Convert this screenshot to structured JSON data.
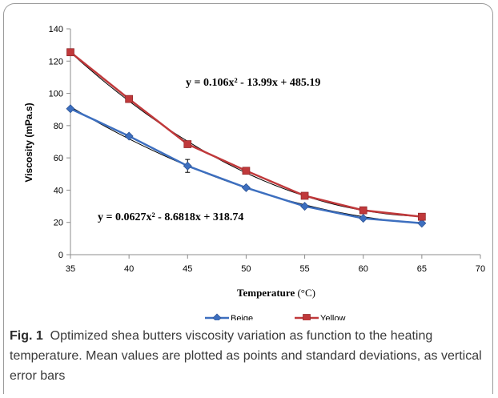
{
  "caption": {
    "label": "Fig. 1",
    "text": "Optimized shea butters viscosity variation as function to the heating temperature. Mean values are plotted as points and standard deviations, as vertical error bars"
  },
  "chart_data": {
    "type": "line",
    "ylabel": "Viscosity (mPa.s)",
    "xlabel_bold": "Temperature",
    "xlabel_unit": " (°C)",
    "xlim": [
      35,
      70
    ],
    "ylim": [
      0,
      140
    ],
    "x_ticks": [
      35,
      40,
      45,
      50,
      55,
      60,
      65,
      70
    ],
    "y_ticks": [
      0,
      20,
      40,
      60,
      80,
      100,
      120,
      140
    ],
    "grid": false,
    "legend_position": "bottom-center",
    "series": [
      {
        "name": "Beige",
        "color": "#3d6fbf",
        "marker": "diamond",
        "x": [
          35,
          40,
          45,
          50,
          55,
          60,
          65
        ],
        "y": [
          90.5,
          73.5,
          55,
          41.5,
          30,
          22.5,
          19.5
        ],
        "error": [
          0,
          0,
          4,
          0,
          0,
          0,
          0
        ],
        "trendline": {
          "a": 0.0627,
          "b": -8.6818,
          "c": 318.74,
          "equation": "y = 0.0627x² - 8.6818x + 318.74"
        }
      },
      {
        "name": "Yellow",
        "color": "#c0393b",
        "marker": "square",
        "x": [
          35,
          40,
          45,
          50,
          55,
          60,
          65
        ],
        "y": [
          125.5,
          96.5,
          68.5,
          52,
          36.5,
          27.5,
          23.5
        ],
        "error": [
          0,
          0,
          0,
          0,
          0,
          0,
          0
        ],
        "trendline": {
          "a": 0.106,
          "b": -13.99,
          "c": 485.19,
          "equation": "y = 0.106x² - 13.99x + 485.19"
        }
      }
    ]
  }
}
